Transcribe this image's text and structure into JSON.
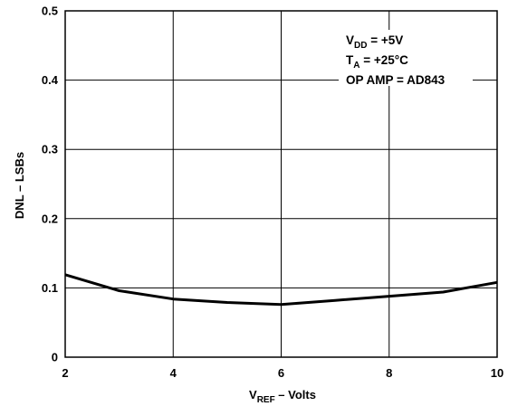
{
  "chart_data": {
    "type": "line",
    "x": [
      2,
      3,
      4,
      5,
      6,
      7,
      8,
      9,
      10
    ],
    "series": [
      {
        "values": [
          0.119,
          0.096,
          0.084,
          0.079,
          0.076,
          0.082,
          0.088,
          0.094,
          0.108
        ]
      }
    ],
    "xlim": [
      2,
      10
    ],
    "ylim": [
      0,
      0.5
    ],
    "x_ticks": [
      "2",
      "4",
      "6",
      "8",
      "10"
    ],
    "y_ticks": [
      "0",
      "0.1",
      "0.2",
      "0.3",
      "0.4",
      "0.5"
    ],
    "xlabel": {
      "main": "V",
      "sub": "REF",
      "rest": " – Volts"
    },
    "ylabel": "DNL – LSBs",
    "grid": true,
    "annotations": [
      {
        "main": "V",
        "sub": "DD",
        "rest": " = +5V"
      },
      {
        "main": "T",
        "sub": "A",
        "rest": " = +25°C"
      },
      {
        "main": "OP AMP = AD843",
        "sub": "",
        "rest": ""
      }
    ],
    "annotation_placement": "top-right"
  }
}
